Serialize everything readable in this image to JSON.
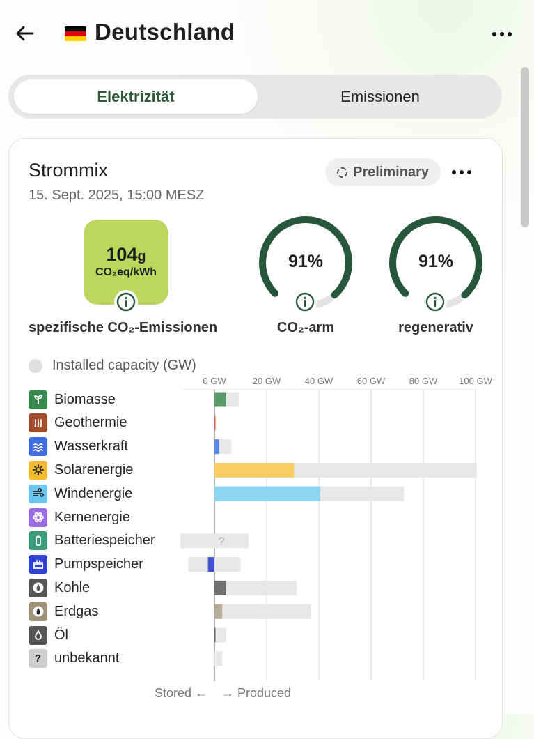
{
  "header": {
    "title": "Deutschland",
    "back_icon": "arrow-left-icon",
    "more_icon": "more-horizontal-icon",
    "flag_colors": [
      "#000000",
      "#dd0000",
      "#ffce00"
    ]
  },
  "tabs": [
    {
      "label": "Elektrizität",
      "active": true
    },
    {
      "label": "Emissionen",
      "active": false
    }
  ],
  "card": {
    "title": "Strommix",
    "date": "15. Sept. 2025, 15:00 MESZ",
    "badge_label": "Preliminary"
  },
  "metrics": {
    "co2_value": "104",
    "co2_value_unit": "g",
    "co2_unit": "CO₂eq/kWh",
    "co2_label": "spezifische CO₂-Emissionen",
    "co2_color": "#bcd65e",
    "low_carbon": {
      "value": "91%",
      "fraction": 0.91,
      "label": "CO₂-arm"
    },
    "renewable": {
      "value": "91%",
      "fraction": 0.91,
      "label": "regenerativ"
    },
    "gauge_color": "#27573a",
    "gauge_track_color": "#e3e3e3"
  },
  "legend": {
    "installed_capacity_label": "Installed capacity (GW)"
  },
  "chart_data": {
    "type": "bar",
    "unit": "GW",
    "ticks": [
      "0 GW",
      "20 GW",
      "40 GW",
      "60 GW",
      "80 GW",
      "100 GW"
    ],
    "tick_values": [
      0,
      20,
      40,
      60,
      80,
      100
    ],
    "xlim": [
      -13,
      100
    ],
    "footer_left": "Stored ←",
    "footer_right": "→ Produced",
    "categories": [
      {
        "name": "Biomasse",
        "icon": "sprout-icon",
        "color": "#3a8a50",
        "bar_color": "#5a9a6a",
        "produced": 4.5,
        "capacity": 9.5
      },
      {
        "name": "Geothermie",
        "icon": "heat-icon",
        "color": "#a34d2c",
        "bar_color": "#c46a45",
        "produced": 0.2,
        "capacity": 0.4
      },
      {
        "name": "Wasserkraft",
        "icon": "waves-icon",
        "color": "#3f6ee0",
        "bar_color": "#5b86ec",
        "produced": 1.8,
        "capacity": 6.5
      },
      {
        "name": "Solarenergie",
        "icon": "sun-icon",
        "color": "#f2bb2f",
        "bar_color": "#f5cd60",
        "produced": 30.5,
        "capacity": 100.5
      },
      {
        "name": "Windenergie",
        "icon": "wind-icon",
        "color": "#6bc5ee",
        "bar_color": "#8ed5f4",
        "produced": 40.5,
        "capacity": 72.5
      },
      {
        "name": "Kernenergie",
        "icon": "atom-icon",
        "color": "#9a6ce6",
        "bar_color": "#b08cf0",
        "produced": 0,
        "capacity": 0
      },
      {
        "name": "Batteriespeicher",
        "icon": "battery-icon",
        "color": "#3b9a78",
        "bar_color": "#5ab08e",
        "produced": 0,
        "capacity": 13,
        "stored_capacity": 13,
        "unknown_mark": "?"
      },
      {
        "name": "Pumpspeicher",
        "icon": "pump-storage-icon",
        "color": "#2e3fd3",
        "bar_color": "#4452d6",
        "produced": 0,
        "stored": 2.5,
        "capacity": 10,
        "stored_capacity": 10
      },
      {
        "name": "Kohle",
        "icon": "coal-icon",
        "color": "#555555",
        "bar_color": "#707070",
        "produced": 4.5,
        "capacity": 31.5
      },
      {
        "name": "Erdgas",
        "icon": "gas-flame-icon",
        "color": "#a09279",
        "bar_color": "#b5aa93",
        "produced": 3,
        "capacity": 37
      },
      {
        "name": "Öl",
        "icon": "oil-drop-icon",
        "color": "#555555",
        "bar_color": "#666666",
        "produced": 0.4,
        "capacity": 4.5
      },
      {
        "name": "unbekannt",
        "icon": "question-icon",
        "label": "?",
        "color": "#cfcfcf",
        "bar_color": "#bdbdbd",
        "produced": 0,
        "capacity": 3
      }
    ]
  }
}
